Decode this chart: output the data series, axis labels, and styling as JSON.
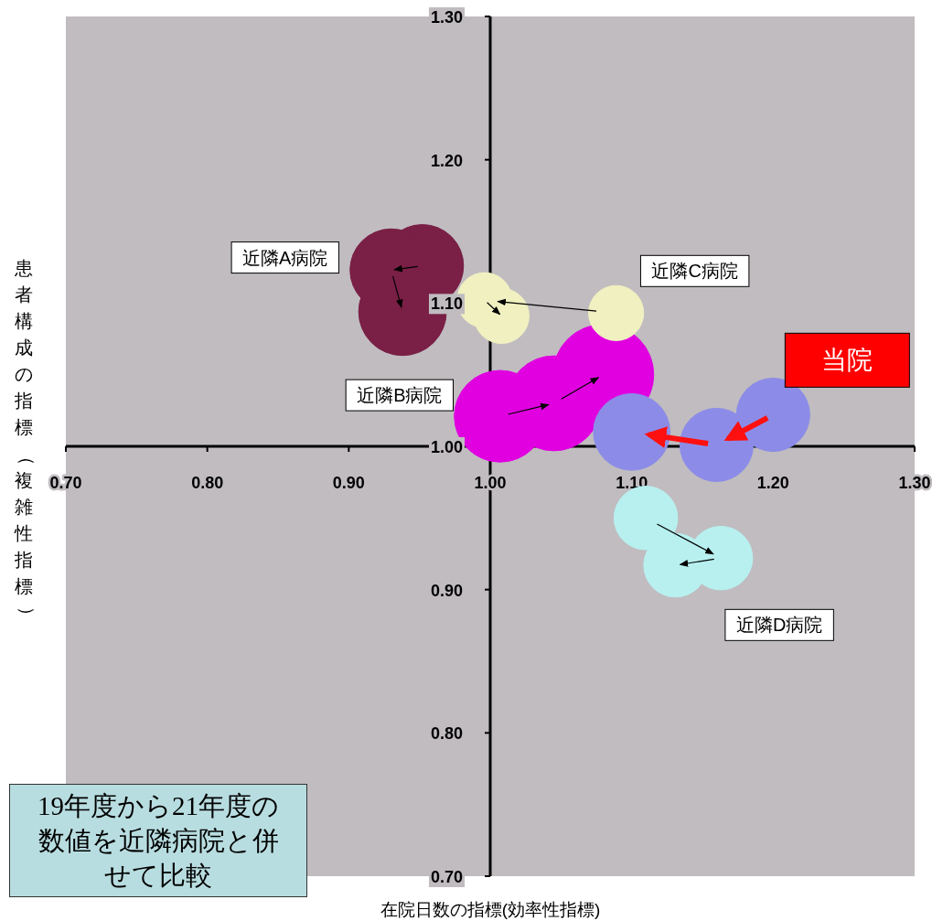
{
  "chart_data": {
    "type": "bubble",
    "xlabel": "在院日数の指標(効率性指標)",
    "ylabel": "患者構成の指標（複雑性指標）",
    "xlim": [
      0.7,
      1.3
    ],
    "ylim": [
      0.7,
      1.3
    ],
    "xticks": [
      {
        "value": 0.7,
        "label": "0.70"
      },
      {
        "value": 0.8,
        "label": "0.80"
      },
      {
        "value": 0.9,
        "label": "0.90"
      },
      {
        "value": 1.0,
        "label": "1.00"
      },
      {
        "value": 1.1,
        "label": "1.10"
      },
      {
        "value": 1.2,
        "label": "1.20"
      },
      {
        "value": 1.3,
        "label": "1.30"
      }
    ],
    "yticks": [
      {
        "value": 0.7,
        "label": "0.70"
      },
      {
        "value": 0.8,
        "label": "0.80"
      },
      {
        "value": 0.9,
        "label": "0.90"
      },
      {
        "value": 1.0,
        "label": "1.00"
      },
      {
        "value": 1.1,
        "label": "1.10"
      },
      {
        "value": 1.2,
        "label": "1.20"
      },
      {
        "value": 1.3,
        "label": "1.30"
      }
    ],
    "grid": false,
    "legend": false,
    "series": [
      {
        "name": "近隣A病院",
        "color": "#7a1f45",
        "x": [
          0.952,
          0.93,
          0.938
        ],
        "values": [
          1.126,
          1.123,
          1.094
        ],
        "sizes": [
          0.67,
          0.67,
          0.76
        ]
      },
      {
        "name": "近隣B病院",
        "color": "#e000e0",
        "x": [
          1.007,
          1.045,
          1.08
        ],
        "values": [
          1.021,
          1.03,
          1.05
        ],
        "sizes": [
          0.83,
          0.89,
          1
        ]
      },
      {
        "name": "近隣C病院",
        "color": "#f0f0c0",
        "x": [
          1.089,
          0.996,
          1.008
        ],
        "values": [
          1.093,
          1.102,
          1.091
        ],
        "sizes": [
          0.3,
          0.3,
          0.3
        ]
      },
      {
        "name": "近隣D病院",
        "color": "#b8f0f0",
        "x": [
          1.11,
          1.163,
          1.131
        ],
        "values": [
          0.95,
          0.922,
          0.917
        ],
        "sizes": [
          0.4,
          0.4,
          0.4
        ]
      },
      {
        "name": "当院",
        "color": "#8c8ce8",
        "x": [
          1.2,
          1.16,
          1.1
        ],
        "values": [
          1.022,
          1.001,
          1.01
        ],
        "sizes": [
          0.53,
          0.53,
          0.58
        ]
      }
    ],
    "annotations": [
      "19年度から21年度の数値を近隣病院と併せて比較"
    ]
  }
}
